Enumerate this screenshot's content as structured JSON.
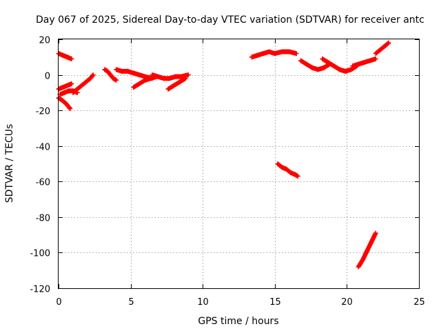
{
  "chart_data": {
    "type": "scatter",
    "title": "Day 067 of 2025, Sidereal Day-to-day VTEC variation (SDTVAR) for receiver antc",
    "xlabel": "GPS time / hours",
    "ylabel": "SDTVAR / TECUs",
    "xlim": [
      0,
      25
    ],
    "ylim": [
      -120,
      20
    ],
    "xticks": [
      "0",
      "5",
      "10",
      "15",
      "20",
      "25"
    ],
    "yticks": [
      "20",
      "0",
      "-20",
      "-40",
      "-60",
      "-80",
      "-100",
      "-120"
    ],
    "grid": true,
    "legend": "none",
    "marker": "plus",
    "color": "#ff0000",
    "segments": [
      {
        "x": [
          0.0,
          0.3,
          0.6,
          0.9
        ],
        "y": [
          12,
          11,
          10,
          9
        ]
      },
      {
        "x": [
          0.0,
          0.3,
          0.6,
          0.9
        ],
        "y": [
          -8,
          -7,
          -6,
          -5
        ]
      },
      {
        "x": [
          0.0,
          0.2,
          0.5,
          0.8
        ],
        "y": [
          -13,
          -14,
          -16,
          -19
        ]
      },
      {
        "x": [
          0.1,
          0.4,
          0.7,
          1.0,
          1.3
        ],
        "y": [
          -11,
          -10,
          -9,
          -9,
          -10
        ]
      },
      {
        "x": [
          1.0,
          1.3,
          1.6,
          1.9,
          2.2,
          2.4
        ],
        "y": [
          -10,
          -8,
          -6,
          -4,
          -2,
          0
        ]
      },
      {
        "x": [
          3.2,
          3.4,
          3.6,
          3.8,
          4.0
        ],
        "y": [
          3,
          2,
          0,
          -2,
          -3
        ]
      },
      {
        "x": [
          4.0,
          4.4,
          4.8,
          5.2,
          5.6,
          6.0,
          6.5
        ],
        "y": [
          3,
          2,
          2,
          1,
          0,
          -1,
          -2
        ]
      },
      {
        "x": [
          5.2,
          5.6,
          6.0,
          6.4,
          6.8
        ],
        "y": [
          -7,
          -5,
          -3,
          -2,
          -1
        ]
      },
      {
        "x": [
          6.5,
          6.9,
          7.3,
          7.7,
          8.1,
          8.5,
          9.0
        ],
        "y": [
          0,
          -1,
          -2,
          -2,
          -1,
          -1,
          0
        ]
      },
      {
        "x": [
          7.6,
          8.0,
          8.4,
          8.8
        ],
        "y": [
          -8,
          -6,
          -4,
          -2
        ]
      },
      {
        "x": [
          13.4,
          13.8,
          14.2,
          14.6,
          15.0,
          15.5,
          16.0,
          16.5
        ],
        "y": [
          10,
          11,
          12,
          13,
          12,
          13,
          13,
          12
        ]
      },
      {
        "x": [
          16.8,
          17.2,
          17.6,
          18.0,
          18.4,
          18.8
        ],
        "y": [
          8,
          6,
          4,
          3,
          4,
          6
        ]
      },
      {
        "x": [
          18.3,
          18.7,
          19.1,
          19.5,
          19.9,
          20.3,
          20.7
        ],
        "y": [
          9,
          7,
          5,
          3,
          2,
          3,
          5
        ]
      },
      {
        "x": [
          20.4,
          20.8,
          21.2,
          21.6,
          22.0
        ],
        "y": [
          5,
          6,
          7,
          8,
          9
        ]
      },
      {
        "x": [
          22.0,
          22.3,
          22.6,
          22.9
        ],
        "y": [
          12,
          14,
          16,
          18
        ]
      },
      {
        "x": [
          15.2,
          15.5,
          15.8,
          16.1,
          16.4,
          16.6
        ],
        "y": [
          -50,
          -52,
          -53,
          -55,
          -56,
          -57
        ]
      },
      {
        "x": [
          20.8,
          21.1,
          21.4,
          21.7,
          22.0
        ],
        "y": [
          -108,
          -104,
          -99,
          -94,
          -89
        ]
      }
    ]
  }
}
